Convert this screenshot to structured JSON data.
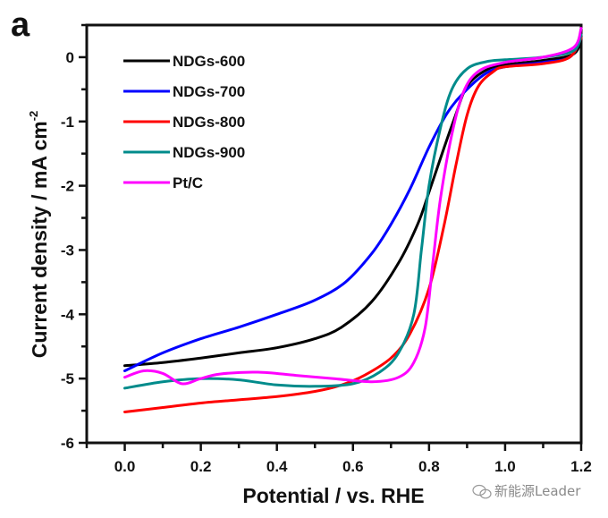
{
  "chart_data": {
    "type": "line",
    "panel_label": "a",
    "title": "",
    "xlabel": "Potential / vs. RHE",
    "ylabel": "Current density / mA cm",
    "ylabel_superscript": "-2",
    "xlim": [
      -0.1,
      1.2
    ],
    "ylim": [
      -6,
      0.5
    ],
    "xticks": [
      0.0,
      0.2,
      0.4,
      0.6,
      0.8,
      1.0,
      1.2
    ],
    "xtick_labels": [
      "0.0",
      "0.2",
      "0.4",
      "0.6",
      "0.8",
      "1.0",
      "1.2"
    ],
    "xminor_step": 0.1,
    "yticks": [
      0,
      -1,
      -2,
      -3,
      -4,
      -5,
      -6
    ],
    "ytick_labels": [
      "0",
      "-1",
      "-2",
      "-3",
      "-4",
      "-5",
      "-6"
    ],
    "yminor_step": 0.5,
    "grid": false,
    "legend_position": "top-left",
    "series": [
      {
        "name": "NDGs-600",
        "color": "#000000",
        "x": [
          0.0,
          0.1,
          0.2,
          0.3,
          0.4,
          0.5,
          0.57,
          0.65,
          0.72,
          0.77,
          0.8,
          0.84,
          0.87,
          0.9,
          0.95,
          1.0,
          1.1,
          1.18,
          1.2
        ],
        "y": [
          -4.8,
          -4.75,
          -4.68,
          -4.6,
          -4.52,
          -4.38,
          -4.2,
          -3.8,
          -3.2,
          -2.6,
          -2.1,
          -1.4,
          -0.9,
          -0.45,
          -0.2,
          -0.12,
          -0.05,
          0.05,
          0.3
        ]
      },
      {
        "name": "NDGs-700",
        "color": "#0000ff",
        "x": [
          0.0,
          0.1,
          0.2,
          0.3,
          0.4,
          0.5,
          0.58,
          0.65,
          0.7,
          0.75,
          0.8,
          0.85,
          0.9,
          0.95,
          1.0,
          1.1,
          1.17,
          1.2
        ],
        "y": [
          -4.88,
          -4.6,
          -4.38,
          -4.2,
          -4.0,
          -3.78,
          -3.5,
          -3.05,
          -2.6,
          -2.05,
          -1.4,
          -0.85,
          -0.5,
          -0.25,
          -0.15,
          -0.08,
          0.0,
          0.3
        ]
      },
      {
        "name": "NDGs-800",
        "color": "#ff0000",
        "x": [
          0.0,
          0.1,
          0.2,
          0.3,
          0.4,
          0.5,
          0.57,
          0.63,
          0.7,
          0.75,
          0.8,
          0.84,
          0.87,
          0.9,
          0.93,
          0.97,
          1.0,
          1.1,
          1.17,
          1.2
        ],
        "y": [
          -5.52,
          -5.45,
          -5.38,
          -5.33,
          -5.28,
          -5.2,
          -5.1,
          -4.95,
          -4.68,
          -4.3,
          -3.6,
          -2.6,
          -1.7,
          -0.9,
          -0.45,
          -0.22,
          -0.15,
          -0.1,
          0.0,
          0.3
        ]
      },
      {
        "name": "NDGs-900",
        "color": "#008b8b",
        "x": [
          0.0,
          0.1,
          0.2,
          0.3,
          0.4,
          0.5,
          0.6,
          0.67,
          0.72,
          0.76,
          0.78,
          0.8,
          0.83,
          0.86,
          0.9,
          0.95,
          1.0,
          1.1,
          1.18,
          1.2
        ],
        "y": [
          -5.15,
          -5.05,
          -5.0,
          -5.02,
          -5.1,
          -5.12,
          -5.08,
          -4.9,
          -4.6,
          -4.0,
          -3.0,
          -2.0,
          -1.1,
          -0.5,
          -0.18,
          -0.07,
          -0.04,
          0.0,
          0.1,
          0.35
        ]
      },
      {
        "name": "Pt/C",
        "color": "#ff00ff",
        "x": [
          0.0,
          0.05,
          0.1,
          0.15,
          0.2,
          0.25,
          0.35,
          0.45,
          0.55,
          0.65,
          0.72,
          0.76,
          0.79,
          0.81,
          0.83,
          0.86,
          0.89,
          0.93,
          1.0,
          1.1,
          1.18,
          1.2
        ],
        "y": [
          -4.98,
          -4.88,
          -4.92,
          -5.08,
          -5.0,
          -4.93,
          -4.9,
          -4.95,
          -5.0,
          -5.05,
          -4.98,
          -4.75,
          -4.2,
          -3.2,
          -2.2,
          -1.2,
          -0.55,
          -0.22,
          -0.08,
          0.0,
          0.15,
          0.45
        ]
      }
    ]
  },
  "watermark": {
    "icon": "wechat-icon",
    "text": "新能源Leader"
  }
}
